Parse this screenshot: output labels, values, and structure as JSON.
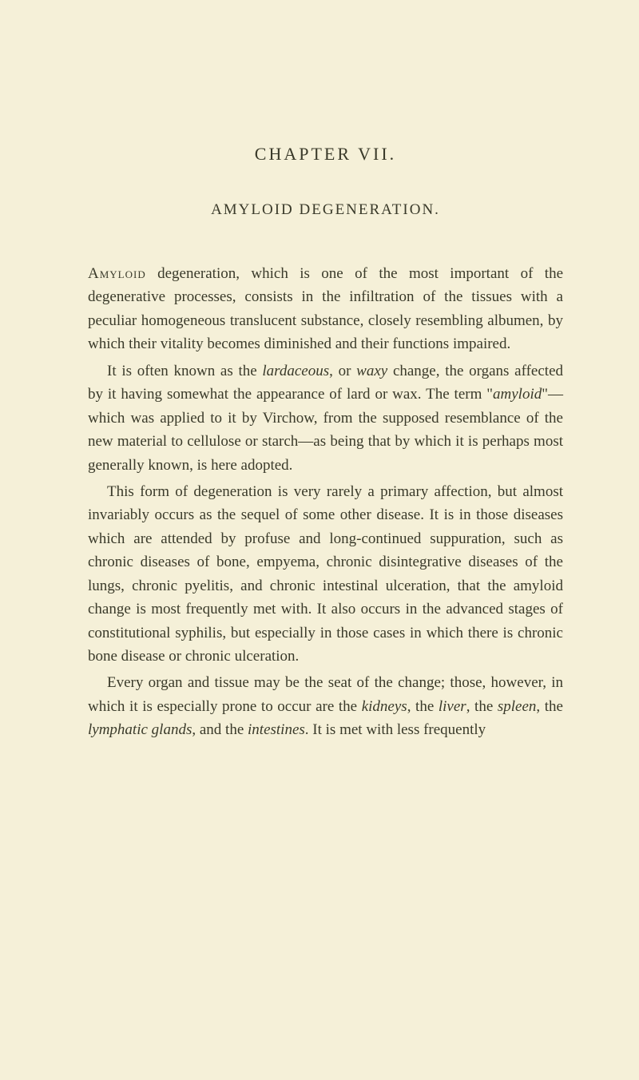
{
  "chapter_title": "CHAPTER VII.",
  "section_title": "AMYLOID DEGENERATION.",
  "paragraphs": {
    "p1_lead": "Amyloid",
    "p1_rest": " degeneration, which is one of the most important of the degenerative processes, consists in the infiltration of the tissues with a peculiar homogeneous translucent substance, closely resembling albumen, by which their vitality becomes diminished and their functions impaired.",
    "p2_a": "It is often known as the ",
    "p2_i1": "lardaceous",
    "p2_b": ", or ",
    "p2_i2": "waxy",
    "p2_c": " change, the organs affected by it having somewhat the appearance of lard or wax. The term \"",
    "p2_i3": "amyloid",
    "p2_d": "\"—which was applied to it by Virchow, from the supposed resemblance of the new material to cellulose or starch—as being that by which it is perhaps most generally known, is here adopted.",
    "p3": "This form of degeneration is very rarely a primary affection, but almost invariably occurs as the sequel of some other disease. It is in those diseases which are attended by profuse and long-continued suppuration, such as chronic diseases of bone, empyema, chronic disintegrative diseases of the lungs, chronic pyelitis, and chronic intestinal ulceration, that the amyloid change is most frequently met with. It also occurs in the advanced stages of constitutional syphilis, but especially in those cases in which there is chronic bone disease or chronic ulceration.",
    "p4_a": "Every organ and tissue may be the seat of the change; those, however, in which it is especially prone to occur are the ",
    "p4_i1": "kidneys",
    "p4_b": ", the ",
    "p4_i2": "liver",
    "p4_c": ", the ",
    "p4_i3": "spleen",
    "p4_d": ", the ",
    "p4_i4": "lymphatic glands",
    "p4_e": ", and the ",
    "p4_i5": "intestines",
    "p4_f": ". It is met with less frequently"
  },
  "colors": {
    "background": "#f5f0d8",
    "text": "#3a3a2a"
  },
  "typography": {
    "body_fontsize": 19,
    "title_fontsize": 22,
    "section_fontsize": 19,
    "line_height": 1.55
  }
}
